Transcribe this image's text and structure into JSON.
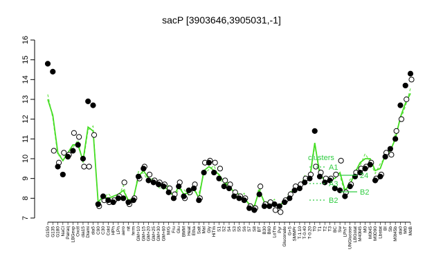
{
  "chart_data": {
    "type": "line",
    "title": "sacP [3903646,3905031,-1]",
    "xlabel": "",
    "ylabel": "",
    "ylim": [
      7,
      16
    ],
    "yticks": [
      7,
      8,
      9,
      10,
      11,
      12,
      13,
      14,
      15,
      16
    ],
    "grid": false,
    "colors": {
      "filled": "#000000",
      "open_stroke": "#000000",
      "open_fill": "#ffffff",
      "line": "#44dd22",
      "dashed": "#44dd22",
      "legend": "#2ecc40"
    },
    "categories": [
      "G150",
      "G135",
      "G180",
      "NaCl",
      "Pairaq",
      "LBGexp",
      "Oxctl",
      "dia15",
      "Diami",
      "dia5",
      "C90",
      "C30",
      "Cold",
      "HPh",
      "LPh",
      "aero",
      "nit",
      "ferm",
      "GM+10",
      "GM+15",
      "GM+20",
      "GM+25",
      "GM+30",
      "GM+60",
      "M/G",
      "Fru",
      "Glu",
      "BMM",
      "Heat",
      "Etha",
      "Salt",
      "Mal",
      "Gly",
      "HiTm",
      "S1",
      "S2",
      "S4",
      "S3",
      "S5",
      "S6",
      "S7",
      "S8",
      "BT",
      "B30",
      "B60",
      "LoTm",
      "Pyr",
      "Gluconate",
      "G+S",
      "SMMPr",
      "T-1.10",
      "T-0.40",
      "T-0.20",
      "T0",
      "T1",
      "T2",
      "T3",
      "BC",
      "Sw",
      "LPhT",
      "UNGlucose",
      "LBGstat",
      "M40t45",
      "M0",
      "M0t45",
      "M0D90",
      "Lbstat",
      "BI",
      "Sb",
      "M0t45b",
      "dia0",
      "Mt0",
      "MdB"
    ],
    "series": [
      {
        "marker": "filled",
        "values": [
          14.8,
          14.4,
          9.6,
          9.2,
          10.1,
          10.4,
          10.7,
          10.0,
          12.9,
          12.7,
          7.7,
          8.1,
          7.9,
          7.8,
          8.0,
          8.0,
          7.8,
          7.9,
          9.1,
          9.5,
          8.9,
          8.8,
          8.7,
          8.6,
          8.3,
          8.0,
          8.6,
          8.1,
          8.4,
          8.5,
          7.9,
          9.3,
          9.8,
          9.3,
          9.0,
          8.6,
          8.5,
          8.1,
          8.0,
          7.9,
          7.5,
          7.4,
          8.2,
          7.6,
          7.6,
          7.7,
          7.6,
          7.8,
          8.0,
          8.4,
          8.5,
          8.8,
          9.0,
          11.4,
          9.1,
          8.8,
          8.9,
          8.5,
          8.4,
          8.1,
          8.6,
          9.1,
          9.3,
          9.5,
          9.7,
          8.9,
          9.1,
          10.1,
          10.5,
          11.0,
          12.7,
          13.7,
          14.3
        ]
      },
      {
        "marker": "open",
        "values": [
          null,
          10.4,
          9.8,
          10.3,
          10.2,
          11.3,
          11.1,
          9.6,
          9.6,
          11.2,
          7.6,
          7.9,
          7.8,
          7.9,
          8.1,
          8.8,
          7.7,
          8.0,
          9.0,
          9.6,
          9.2,
          8.9,
          8.8,
          8.7,
          8.5,
          8.2,
          8.8,
          8.0,
          8.3,
          8.7,
          8.0,
          9.8,
          9.9,
          9.8,
          9.5,
          8.9,
          8.7,
          8.3,
          8.1,
          8.0,
          7.6,
          7.5,
          8.6,
          7.7,
          7.8,
          7.4,
          7.3,
          7.9,
          8.2,
          8.6,
          8.7,
          9.0,
          9.2,
          9.6,
          9.3,
          9.0,
          9.0,
          9.2,
          9.9,
          8.3,
          8.7,
          9.3,
          9.5,
          9.6,
          9.8,
          9.0,
          9.2,
          10.3,
          10.2,
          11.4,
          12.0,
          13.0,
          14.0
        ]
      },
      {
        "marker": "line",
        "values": [
          13.0,
          12.2,
          10.3,
          9.9,
          10.3,
          10.7,
          10.7,
          9.9,
          11.6,
          11.4,
          7.8,
          8.1,
          8.0,
          8.1,
          8.2,
          8.4,
          7.9,
          8.0,
          9.1,
          9.4,
          9.0,
          8.8,
          8.7,
          8.6,
          8.4,
          8.1,
          8.6,
          8.2,
          8.3,
          8.5,
          8.0,
          9.4,
          9.6,
          9.4,
          9.2,
          8.8,
          8.6,
          8.3,
          8.2,
          8.0,
          7.7,
          7.6,
          8.4,
          7.8,
          7.8,
          7.7,
          7.6,
          7.9,
          8.1,
          8.5,
          8.6,
          8.9,
          9.0,
          10.8,
          9.2,
          8.9,
          9.0,
          9.0,
          9.3,
          8.4,
          8.7,
          9.3,
          9.8,
          10.0,
          10.0,
          9.4,
          9.5,
          10.2,
          10.4,
          11.0,
          12.1,
          12.8,
          13.3
        ]
      }
    ],
    "legend": {
      "placement": "inside",
      "title": "clusters",
      "entries": [
        "A1",
        "24",
        "A3",
        "B2",
        "B2"
      ]
    }
  }
}
